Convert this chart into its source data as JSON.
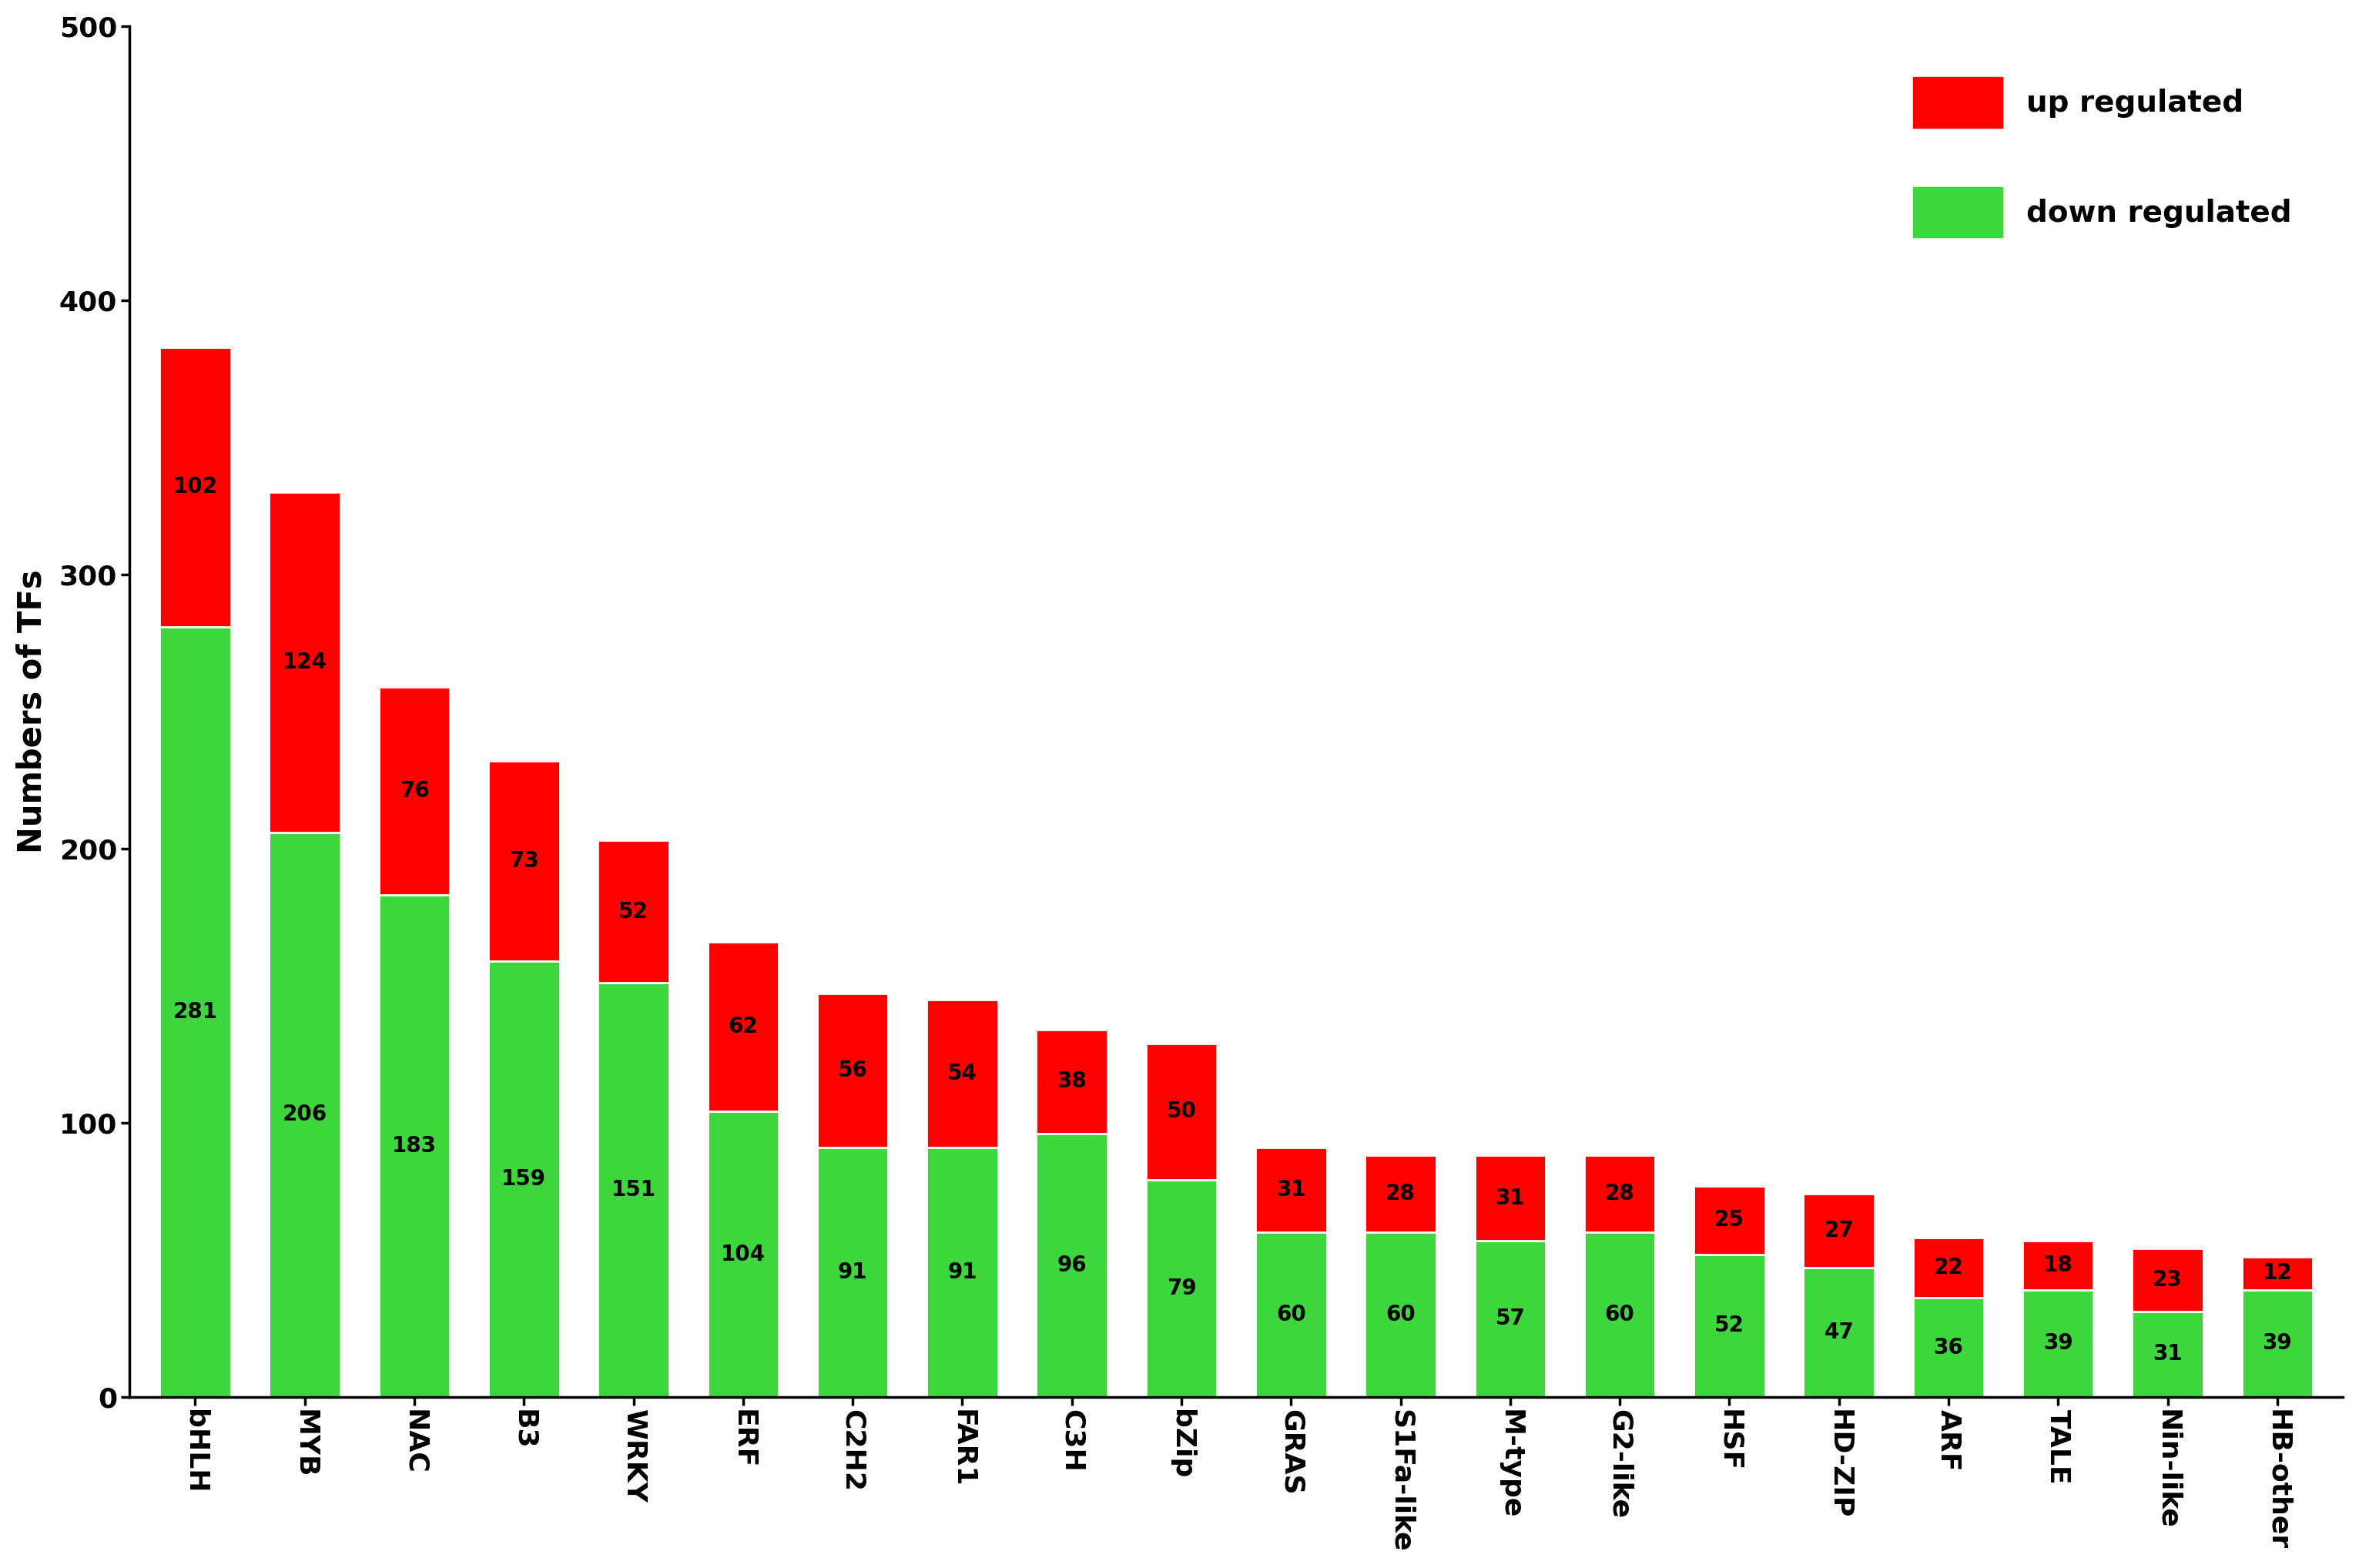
{
  "categories": [
    "bHLH",
    "MYB",
    "NAC",
    "B3",
    "WRKY",
    "ERF",
    "C2H2",
    "FAR1",
    "C3H",
    "bZip",
    "GRAS",
    "S1Fa-like",
    "M-type",
    "G2-like",
    "HSF",
    "HD-ZIP",
    "ARF",
    "TALE",
    "Nin-like",
    "HB-other"
  ],
  "down_regulated": [
    281,
    206,
    183,
    159,
    151,
    104,
    91,
    91,
    96,
    79,
    60,
    60,
    57,
    60,
    52,
    47,
    36,
    39,
    31,
    39
  ],
  "up_regulated": [
    102,
    124,
    76,
    73,
    52,
    62,
    56,
    54,
    38,
    50,
    31,
    28,
    31,
    28,
    25,
    27,
    22,
    18,
    23,
    12
  ],
  "down_color": "#3dd63d",
  "up_color": "#ff0000",
  "ylabel": "Numbers of TFs",
  "ylim": [
    0,
    500
  ],
  "yticks": [
    0,
    100,
    200,
    300,
    400,
    500
  ],
  "legend_up": "up regulated",
  "legend_down": "down regulated",
  "background_color": "#ffffff",
  "bar_edge_color": "white",
  "bar_linewidth": 2.0,
  "label_fontsize": 20,
  "tick_fontsize": 26,
  "ylabel_fontsize": 30,
  "legend_fontsize": 28
}
